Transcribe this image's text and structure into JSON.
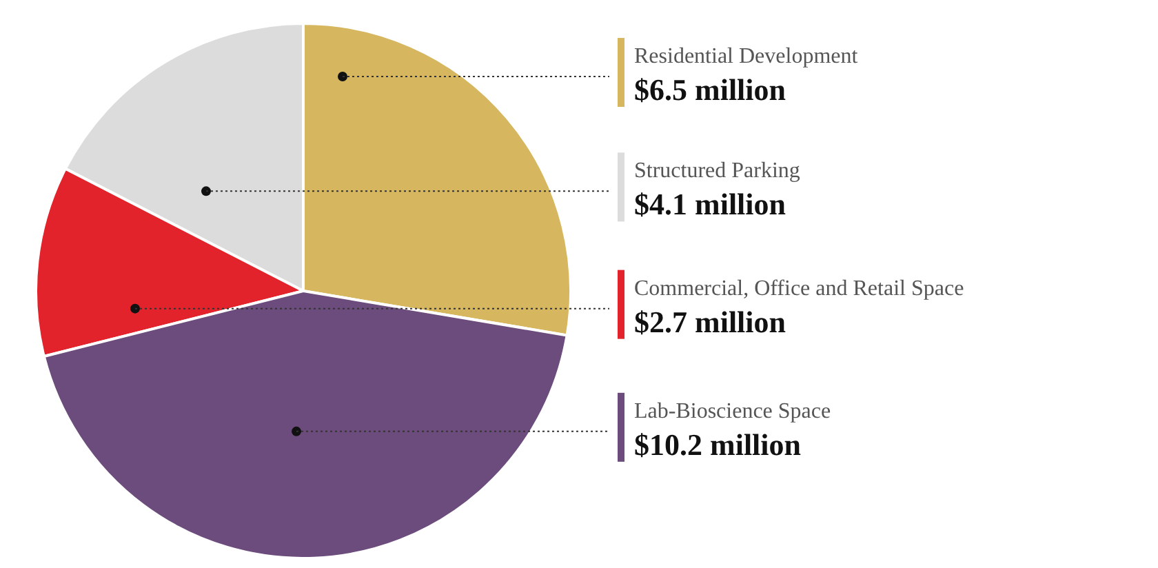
{
  "chart_data": {
    "type": "pie",
    "categories": [
      "Residential Development",
      "Structured Parking",
      "Commercial, Office and Retail Space",
      "Lab-Bioscience Space"
    ],
    "values": [
      6.5,
      4.1,
      2.7,
      10.2
    ],
    "value_labels": [
      "$6.5 million",
      "$4.1 million",
      "$2.7 million",
      "$10.2 million"
    ],
    "colors": [
      "#d6b65e",
      "#dcdcdc",
      "#e2232b",
      "#6c4c7c"
    ]
  }
}
